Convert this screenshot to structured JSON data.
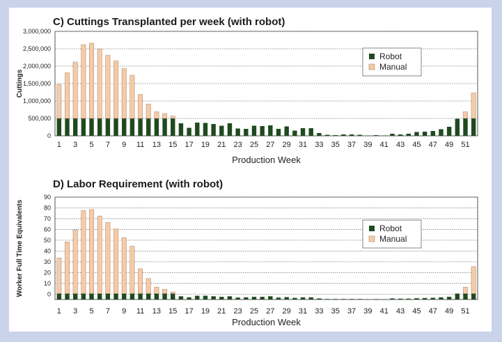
{
  "chart_data": [
    {
      "type": "bar",
      "stacked": true,
      "title": "C) Cuttings Transplanted per week (with robot)",
      "xlabel": "Production Week",
      "ylabel": "Cuttings",
      "ylim": [
        0,
        3000000
      ],
      "yticks": [
        "0",
        "500,000",
        "1,000,000",
        "1,500,000",
        "2,000,000",
        "2,500,000",
        "3,000,000"
      ],
      "x": [
        1,
        2,
        3,
        4,
        5,
        6,
        7,
        8,
        9,
        10,
        11,
        12,
        13,
        14,
        15,
        16,
        17,
        18,
        19,
        20,
        21,
        22,
        23,
        24,
        25,
        26,
        27,
        28,
        29,
        30,
        31,
        32,
        33,
        34,
        35,
        36,
        37,
        38,
        39,
        40,
        41,
        42,
        43,
        44,
        45,
        46,
        47,
        48,
        49,
        50,
        51,
        52
      ],
      "xticks": [
        1,
        3,
        5,
        7,
        9,
        11,
        13,
        15,
        17,
        19,
        21,
        23,
        25,
        27,
        29,
        31,
        33,
        35,
        37,
        39,
        41,
        43,
        45,
        47,
        49,
        51
      ],
      "grid": true,
      "legend": "top-right",
      "series": [
        {
          "name": "Robot",
          "color": "#1f4a1f",
          "values": [
            500000,
            500000,
            500000,
            500000,
            500000,
            500000,
            500000,
            500000,
            500000,
            500000,
            500000,
            500000,
            500000,
            500000,
            500000,
            360000,
            230000,
            380000,
            370000,
            340000,
            290000,
            360000,
            210000,
            200000,
            290000,
            280000,
            300000,
            200000,
            270000,
            150000,
            220000,
            220000,
            80000,
            30000,
            20000,
            40000,
            40000,
            30000,
            10000,
            20000,
            10000,
            60000,
            40000,
            60000,
            110000,
            120000,
            140000,
            190000,
            260000,
            490000,
            500000,
            500000
          ]
        },
        {
          "name": "Manual",
          "color": "#f5cba7",
          "values": [
            970000,
            1310000,
            1620000,
            2120000,
            2160000,
            1990000,
            1810000,
            1650000,
            1430000,
            1240000,
            690000,
            410000,
            190000,
            140000,
            70000,
            0,
            0,
            0,
            0,
            0,
            0,
            0,
            0,
            0,
            0,
            0,
            0,
            0,
            0,
            0,
            0,
            0,
            0,
            0,
            0,
            0,
            0,
            0,
            0,
            0,
            0,
            0,
            0,
            0,
            0,
            0,
            0,
            0,
            0,
            0,
            190000,
            730000
          ]
        }
      ]
    },
    {
      "type": "bar",
      "stacked": true,
      "title": "D) Labor Requirement (with robot)",
      "xlabel": "Production Week",
      "ylabel": "Worker Full Time Equivalents",
      "ylim": [
        -5,
        90
      ],
      "yticks": [
        "0",
        "10",
        "20",
        "30",
        "40",
        "50",
        "60",
        "70",
        "80",
        "90"
      ],
      "x": [
        1,
        2,
        3,
        4,
        5,
        6,
        7,
        8,
        9,
        10,
        11,
        12,
        13,
        14,
        15,
        16,
        17,
        18,
        19,
        20,
        21,
        22,
        23,
        24,
        25,
        26,
        27,
        28,
        29,
        30,
        31,
        32,
        33,
        34,
        35,
        36,
        37,
        38,
        39,
        40,
        41,
        42,
        43,
        44,
        45,
        46,
        47,
        48,
        49,
        50,
        51,
        52
      ],
      "xticks": [
        1,
        3,
        5,
        7,
        9,
        11,
        13,
        15,
        17,
        19,
        21,
        23,
        25,
        27,
        29,
        31,
        33,
        35,
        37,
        39,
        41,
        43,
        45,
        47,
        49,
        51
      ],
      "grid": true,
      "legend": "top-right",
      "series": [
        {
          "name": "Robot",
          "color": "#1f4a1f",
          "values": [
            0.5,
            0.5,
            0.5,
            0.5,
            0.5,
            0.5,
            0.5,
            0.5,
            0.5,
            0.5,
            0.5,
            0.5,
            0.5,
            0.5,
            0.5,
            -2,
            -3,
            -1.5,
            -1.5,
            -2,
            -2.5,
            -2,
            -3.2,
            -3,
            -2.5,
            -2.5,
            -2,
            -3.2,
            -2.8,
            -3.5,
            -3,
            -3,
            -4,
            -4.5,
            -4.5,
            -4.5,
            -4.5,
            -4.5,
            -4.8,
            -4.6,
            -4.8,
            -4,
            -4.2,
            -4.2,
            -3.8,
            -3.6,
            -3.4,
            -3,
            -2.5,
            0.5,
            0.5,
            0.5
          ]
        },
        {
          "name": "Manual",
          "color": "#f5cba7",
          "values": [
            33,
            48,
            59,
            77,
            78,
            72,
            66,
            60,
            52,
            44,
            23,
            14,
            6,
            4,
            1.5,
            0,
            0,
            0,
            0,
            0,
            0,
            0,
            0,
            0,
            0,
            0,
            0,
            0,
            0,
            0,
            0,
            0,
            0,
            0,
            0,
            0,
            0,
            0,
            0,
            0,
            0,
            0,
            0,
            0,
            0,
            0,
            0,
            0,
            0,
            0,
            6,
            25
          ]
        }
      ]
    }
  ]
}
